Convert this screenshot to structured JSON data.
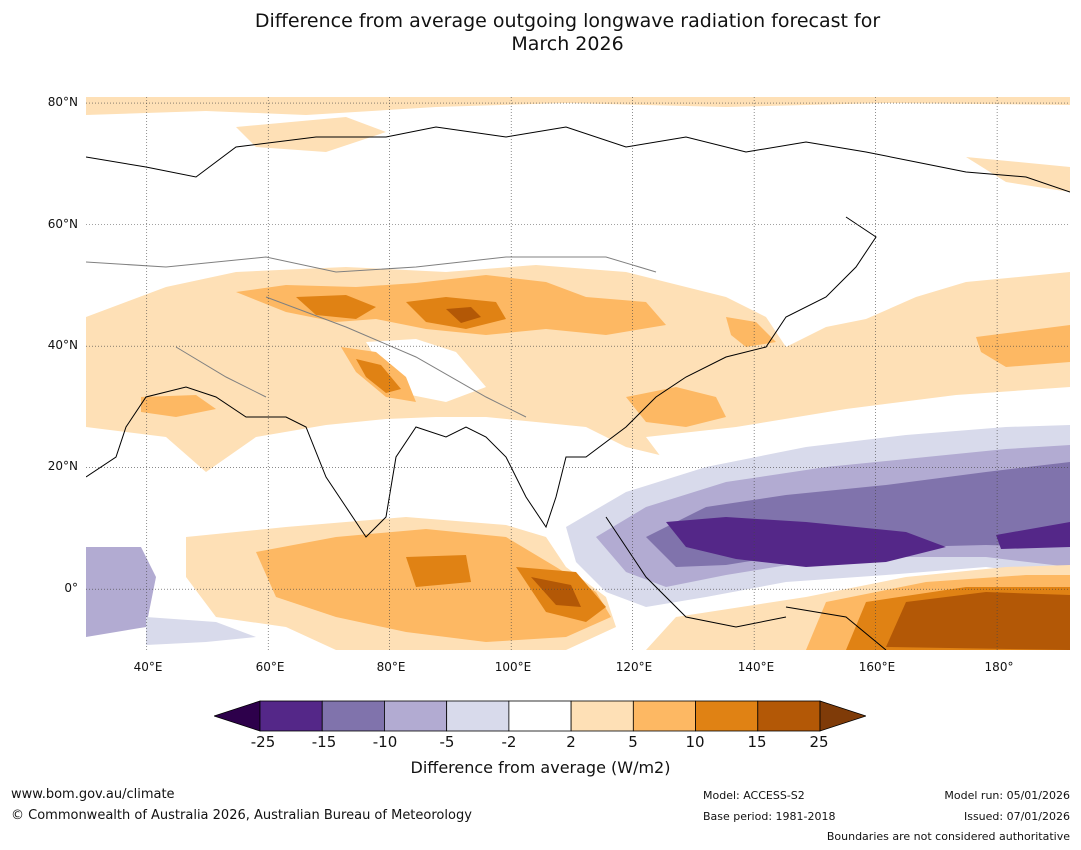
{
  "title_line1": "Difference from average outgoing longwave radiation forecast for",
  "title_line2": "March 2026",
  "map": {
    "lat_labels": [
      "80°N",
      "60°N",
      "40°N",
      "20°N",
      "0°"
    ],
    "lon_labels": [
      "40°E",
      "60°E",
      "80°E",
      "100°E",
      "120°E",
      "140°E",
      "160°E",
      "180°"
    ],
    "gridline_lats": [
      80,
      60,
      40,
      20,
      0
    ],
    "gridline_lons": [
      40,
      60,
      80,
      100,
      120,
      140,
      160,
      180
    ],
    "extent": {
      "lon_min": 30,
      "lon_max": 192,
      "lat_min": -10,
      "lat_max": 81
    }
  },
  "colorbar": {
    "tick_labels": [
      "-25",
      "-15",
      "-10",
      "-5",
      "-2",
      "2",
      "5",
      "10",
      "15",
      "25"
    ],
    "colors": [
      "#542788",
      "#8073ac",
      "#b2abd2",
      "#d8daeb",
      "#ffffff",
      "#fee0b6",
      "#fdb863",
      "#e08214",
      "#b35806"
    ],
    "extend_low_color": "#2d004b",
    "extend_high_color": "#7f3b08",
    "label": "Difference from average (W/m2)"
  },
  "footer": {
    "website": "www.bom.gov.au/climate",
    "copyright": "© Commonwealth of Australia 2026, Australian Bureau of Meteorology",
    "model": "Model: ACCESS-S2",
    "base_period": "Base period: 1981-2018",
    "model_run": "Model run: 05/01/2026",
    "issued": "Issued: 07/01/2026",
    "disclaimer": "Boundaries are not considered authoritative"
  }
}
